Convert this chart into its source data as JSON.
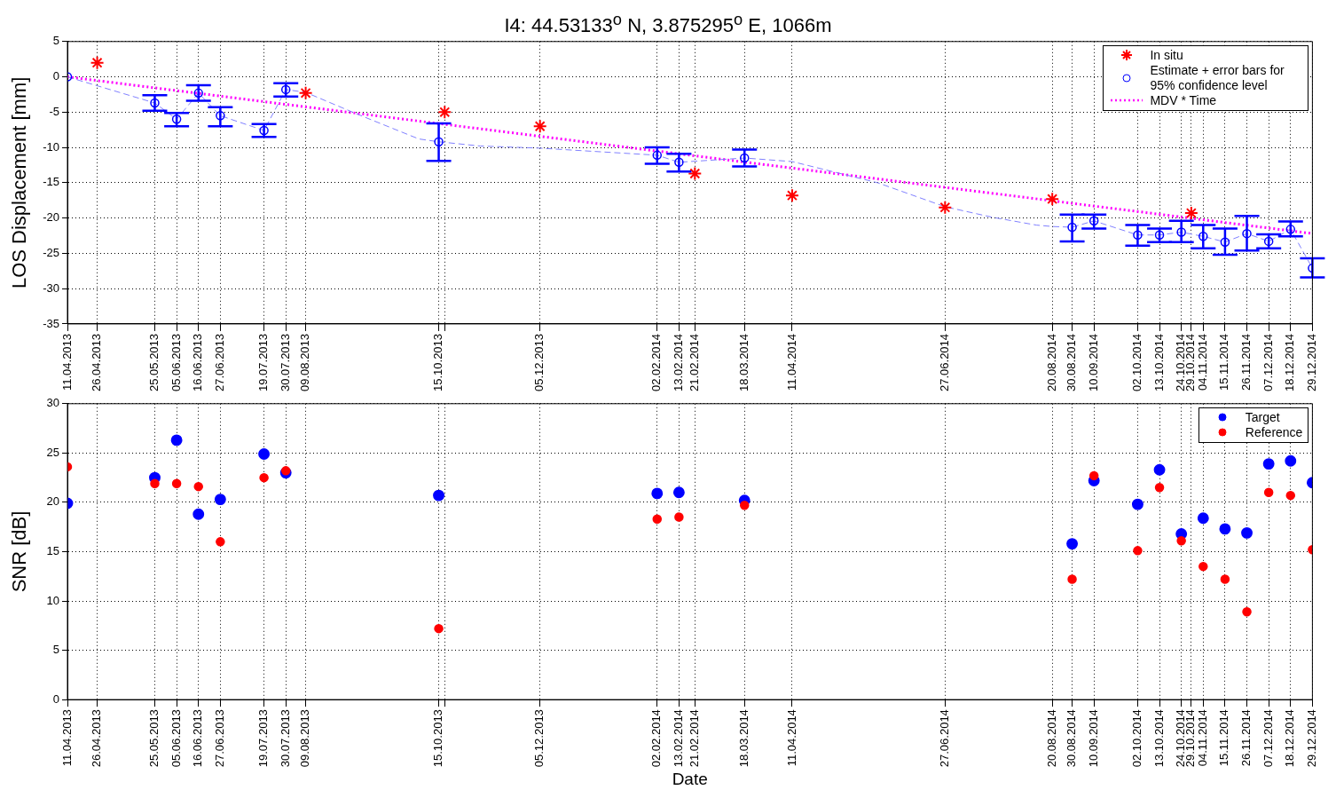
{
  "chart_data": [
    {
      "type": "scatter",
      "title": "I4: 44.53133$^{o}$ N, 3.875295$^{o}$ E, 1066m",
      "ylabel": "LOS Displacement [mm]",
      "grid": true,
      "legend": "top right",
      "xlim": [
        "2013-04-11",
        "2014-12-29"
      ],
      "ylim": [
        -35,
        5
      ],
      "yticks": [
        -35,
        -30,
        -25,
        -20,
        -15,
        -10,
        -5,
        0,
        5
      ],
      "xticks": [
        {
          "value": "2013-04-11",
          "label": "11.04.2013"
        },
        {
          "value": "2013-04-26",
          "label": "26.04.2013"
        },
        {
          "value": "2013-05-25",
          "label": "25.05.2013"
        },
        {
          "value": "2013-06-05",
          "label": "05.06.2013"
        },
        {
          "value": "2013-06-16",
          "label": "16.06.2013"
        },
        {
          "value": "2013-06-27",
          "label": "27.06.2013"
        },
        {
          "value": "2013-07-19",
          "label": "19.07.2013"
        },
        {
          "value": "2013-07-30",
          "label": "30.07.2013"
        },
        {
          "value": "2013-08-09",
          "label": "09.08.2013"
        },
        {
          "value": "2013-10-15",
          "label": "15.10.2013"
        },
        {
          "value": "2013-10-18",
          "label": null
        },
        {
          "value": "2013-12-05",
          "label": "05.12.2013"
        },
        {
          "value": "2014-02-02",
          "label": "02.02.2014"
        },
        {
          "value": "2014-02-13",
          "label": "13.02.2014"
        },
        {
          "value": "2014-02-21",
          "label": "21.02.2014"
        },
        {
          "value": "2014-03-18",
          "label": "18.03.2014"
        },
        {
          "value": "2014-04-11",
          "label": "11.04.2014"
        },
        {
          "value": "2014-06-27",
          "label": "27.06.2014"
        },
        {
          "value": "2014-08-20",
          "label": "20.08.2014"
        },
        {
          "value": "2014-08-30",
          "label": "30.08.2014"
        },
        {
          "value": "2014-09-10",
          "label": "10.09.2014"
        },
        {
          "value": "2014-10-02",
          "label": "02.10.2014"
        },
        {
          "value": "2014-10-13",
          "label": "13.10.2014"
        },
        {
          "value": "2014-10-24",
          "label": "24.10.2014"
        },
        {
          "value": "2014-10-29",
          "label": "29.10.2014"
        },
        {
          "value": "2014-11-04",
          "label": "04.11.2014"
        },
        {
          "value": "2014-11-15",
          "label": "15.11.2014"
        },
        {
          "value": "2014-11-26",
          "label": "26.11.2014"
        },
        {
          "value": "2014-12-07",
          "label": "07.12.2014"
        },
        {
          "value": "2014-12-18",
          "label": "18.12.2014"
        },
        {
          "value": "2014-12-29",
          "label": "29.12.2014"
        }
      ],
      "series": [
        {
          "type": "line",
          "color": "#8080ff",
          "line_style": "dashed",
          "marker": "none",
          "x": [
            "2013-04-11",
            "2013-05-25",
            "2013-06-05",
            "2013-06-16",
            "2013-06-27",
            "2013-07-19",
            "2013-07-30",
            "2013-08-09",
            "2013-09-05",
            "2013-10-05",
            "2013-10-15",
            "2013-11-05",
            "2013-12-05",
            "2014-02-02",
            "2014-02-13",
            "2014-03-18",
            "2014-04-11",
            "2014-05-24",
            "2014-06-27",
            "2014-07-21",
            "2014-08-12",
            "2014-08-20",
            "2014-08-30",
            "2014-09-10",
            "2014-10-02",
            "2014-10-13",
            "2014-10-24",
            "2014-11-04",
            "2014-11-15",
            "2014-11-26",
            "2014-12-07",
            "2014-12-18",
            "2014-12-29"
          ],
          "values": [
            0,
            -3.7,
            -6.0,
            -2.3,
            -5.5,
            -7.6,
            -1.8,
            -2.2,
            -5.4,
            -8.8,
            -9.2,
            -9.8,
            -10.1,
            -11.1,
            -12.1,
            -11.5,
            -12.0,
            -15.0,
            -18.4,
            -19.9,
            -21.0,
            -21.2,
            -21.3,
            -20.4,
            -22.4,
            -22.4,
            -22.0,
            -22.6,
            -23.4,
            -22.2,
            -23.3,
            -21.6,
            -27.1
          ]
        },
        {
          "name": "In situ",
          "type": "scatter",
          "color": "#ff0000",
          "marker": "cross",
          "x": [
            "2013-04-26",
            "2013-08-09",
            "2013-10-18",
            "2013-12-05",
            "2014-02-21",
            "2014-04-11",
            "2014-06-27",
            "2014-08-20",
            "2014-10-29"
          ],
          "values": [
            2.0,
            -2.3,
            -5.0,
            -7.0,
            -13.7,
            -16.8,
            -18.5,
            -17.3,
            -19.3
          ]
        },
        {
          "name": "Estimate + error bars for 95% confidence level",
          "type": "scatter",
          "color": "#0000ff",
          "marker": "circle",
          "x": [
            "2013-04-11",
            "2013-05-25",
            "2013-06-05",
            "2013-06-16",
            "2013-06-27",
            "2013-07-19",
            "2013-07-30",
            "2013-10-15",
            "2014-02-02",
            "2014-02-13",
            "2014-03-18",
            "2014-08-30",
            "2014-09-10",
            "2014-10-02",
            "2014-10-13",
            "2014-10-24",
            "2014-11-04",
            "2014-11-15",
            "2014-11-26",
            "2014-12-07",
            "2014-12-18",
            "2014-12-29"
          ],
          "values": [
            0,
            -3.7,
            -6.0,
            -2.3,
            -5.5,
            -7.6,
            -1.8,
            -9.2,
            -11.1,
            -12.1,
            -11.5,
            -21.3,
            -20.4,
            -22.4,
            -22.4,
            -22.0,
            -22.6,
            -23.4,
            -22.2,
            -23.3,
            -21.6,
            -27.1
          ],
          "errors": [
            null,
            [
              -4.8,
              -2.6
            ],
            [
              -7.0,
              -5.1
            ],
            [
              -3.4,
              -1.2
            ],
            [
              -7.0,
              -4.3
            ],
            [
              -8.5,
              -6.7
            ],
            [
              -2.8,
              -0.9
            ],
            [
              -11.9,
              -6.6
            ],
            [
              -12.3,
              -10.0
            ],
            [
              -13.4,
              -10.9
            ],
            [
              -12.7,
              -10.3
            ],
            [
              -23.3,
              -19.5
            ],
            [
              -21.5,
              -19.5
            ],
            [
              -23.9,
              -21.0
            ],
            [
              -23.4,
              -21.5
            ],
            [
              -23.4,
              -20.4
            ],
            [
              -24.3,
              -21.0
            ],
            [
              -25.2,
              -21.5
            ],
            [
              -24.6,
              -19.7
            ],
            [
              -24.3,
              -22.3
            ],
            [
              -22.6,
              -20.5
            ],
            [
              -28.4,
              -25.7
            ]
          ]
        },
        {
          "name": "MDV * Time",
          "type": "line",
          "color": "#ff00ff",
          "line_style": "dotted",
          "marker": "none",
          "x": [
            "2013-04-11",
            "2014-12-29"
          ],
          "values": [
            0,
            -22.2
          ]
        }
      ]
    },
    {
      "type": "scatter",
      "xlabel": "Date",
      "ylabel": "SNR [dB]",
      "grid": true,
      "legend": "top right",
      "marker": "circle",
      "xlim": [
        "2013-04-11",
        "2014-12-29"
      ],
      "ylim": [
        0,
        30
      ],
      "yticks": [
        0,
        5,
        10,
        15,
        20,
        25,
        30
      ],
      "xticks": [
        {
          "value": "2013-04-11",
          "label": "11.04.2013"
        },
        {
          "value": "2013-04-26",
          "label": "26.04.2013"
        },
        {
          "value": "2013-05-25",
          "label": "25.05.2013"
        },
        {
          "value": "2013-06-05",
          "label": "05.06.2013"
        },
        {
          "value": "2013-06-16",
          "label": "16.06.2013"
        },
        {
          "value": "2013-06-27",
          "label": "27.06.2013"
        },
        {
          "value": "2013-07-19",
          "label": "19.07.2013"
        },
        {
          "value": "2013-07-30",
          "label": "30.07.2013"
        },
        {
          "value": "2013-08-09",
          "label": "09.08.2013"
        },
        {
          "value": "2013-10-15",
          "label": "15.10.2013"
        },
        {
          "value": "2013-10-18",
          "label": null
        },
        {
          "value": "2013-12-05",
          "label": "05.12.2013"
        },
        {
          "value": "2014-02-02",
          "label": "02.02.2014"
        },
        {
          "value": "2014-02-13",
          "label": "13.02.2014"
        },
        {
          "value": "2014-02-21",
          "label": "21.02.2014"
        },
        {
          "value": "2014-03-18",
          "label": "18.03.2014"
        },
        {
          "value": "2014-04-11",
          "label": "11.04.2014"
        },
        {
          "value": "2014-06-27",
          "label": "27.06.2014"
        },
        {
          "value": "2014-08-20",
          "label": "20.08.2014"
        },
        {
          "value": "2014-08-30",
          "label": "30.08.2014"
        },
        {
          "value": "2014-09-10",
          "label": "10.09.2014"
        },
        {
          "value": "2014-10-02",
          "label": "02.10.2014"
        },
        {
          "value": "2014-10-13",
          "label": "13.10.2014"
        },
        {
          "value": "2014-10-24",
          "label": "24.10.2014"
        },
        {
          "value": "2014-10-29",
          "label": "29.10.2014"
        },
        {
          "value": "2014-11-04",
          "label": "04.11.2014"
        },
        {
          "value": "2014-11-15",
          "label": "15.11.2014"
        },
        {
          "value": "2014-11-26",
          "label": "26.11.2014"
        },
        {
          "value": "2014-12-07",
          "label": "07.12.2014"
        },
        {
          "value": "2014-12-18",
          "label": "18.12.2014"
        },
        {
          "value": "2014-12-29",
          "label": "29.12.2014"
        }
      ],
      "x": [
        "2013-04-11",
        "2013-05-25",
        "2013-06-05",
        "2013-06-16",
        "2013-06-27",
        "2013-07-19",
        "2013-07-30",
        "2013-10-15",
        "2014-02-02",
        "2014-02-13",
        "2014-03-18",
        "2014-08-30",
        "2014-09-10",
        "2014-10-02",
        "2014-10-13",
        "2014-10-24",
        "2014-11-04",
        "2014-11-15",
        "2014-11-26",
        "2014-12-07",
        "2014-12-18",
        "2014-12-29"
      ],
      "series": [
        {
          "name": "Target",
          "color": "#0000ff",
          "values": [
            19.9,
            22.5,
            26.3,
            18.8,
            20.3,
            24.9,
            23.0,
            20.7,
            20.9,
            21.0,
            20.2,
            15.8,
            22.2,
            19.8,
            23.3,
            16.8,
            18.4,
            17.3,
            16.9,
            23.9,
            24.2,
            22.0
          ]
        },
        {
          "name": "Reference",
          "color": "#ff0000",
          "values": [
            23.6,
            21.9,
            21.9,
            21.6,
            16.0,
            22.5,
            23.2,
            7.2,
            18.3,
            18.5,
            19.7,
            12.2,
            22.7,
            15.1,
            21.5,
            16.1,
            13.5,
            12.2,
            8.9,
            21.0,
            20.7,
            15.2
          ]
        }
      ]
    }
  ]
}
